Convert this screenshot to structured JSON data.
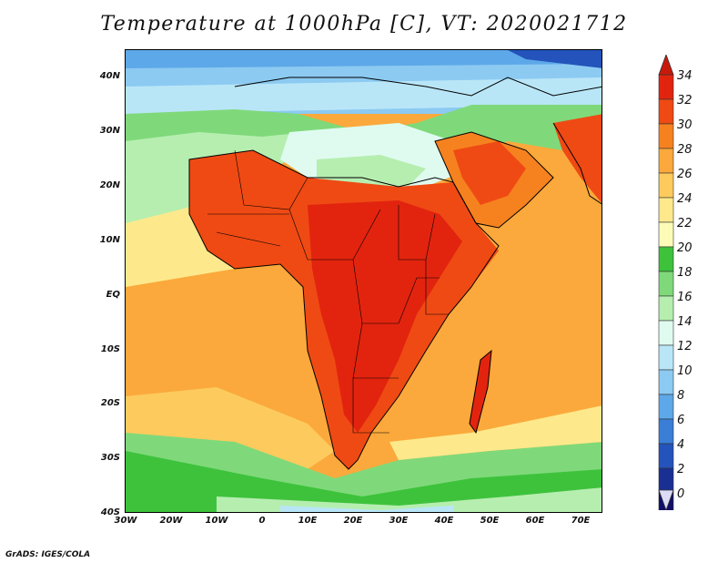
{
  "title": "Temperature at 1000hPa [C], VT: 2020021712",
  "footer": "GrADS: IGES/COLA",
  "map": {
    "projection": "lat-lon",
    "lon_range": [
      -30,
      75
    ],
    "lat_range": [
      -40,
      45
    ],
    "field": "air temperature at 1000 hPa",
    "units": "C"
  },
  "y_axis": {
    "labels": [
      "40N",
      "30N",
      "20N",
      "10N",
      "EQ",
      "10S",
      "20S",
      "30S",
      "40S"
    ],
    "lats": [
      40,
      30,
      20,
      10,
      0,
      -10,
      -20,
      -30,
      -40
    ]
  },
  "x_axis": {
    "labels": [
      "30W",
      "20W",
      "10W",
      "0",
      "10E",
      "20E",
      "30E",
      "40E",
      "50E",
      "60E",
      "70E"
    ],
    "lons": [
      -30,
      -20,
      -10,
      0,
      10,
      20,
      30,
      40,
      50,
      60,
      70
    ]
  },
  "colorbar": {
    "labels": [
      "34",
      "32",
      "30",
      "28",
      "26",
      "24",
      "22",
      "20",
      "18",
      "16",
      "14",
      "12",
      "10",
      "8",
      "6",
      "4",
      "2",
      "0"
    ],
    "colors": [
      "#e2240f",
      "#ef4a14",
      "#f6821f",
      "#fba93c",
      "#fdca5d",
      "#fde98c",
      "#fcfcb8",
      "#3ec23c",
      "#7fd97a",
      "#b6eeb0",
      "#dffbf0",
      "#b9e6f7",
      "#8ccaf2",
      "#5da8e8",
      "#3b7ed8",
      "#2353bb",
      "#1a2f94",
      "#120f68"
    ],
    "top_arrow_color": "#c81a0a",
    "bottom_arrow_color": "#dcdcf6"
  }
}
